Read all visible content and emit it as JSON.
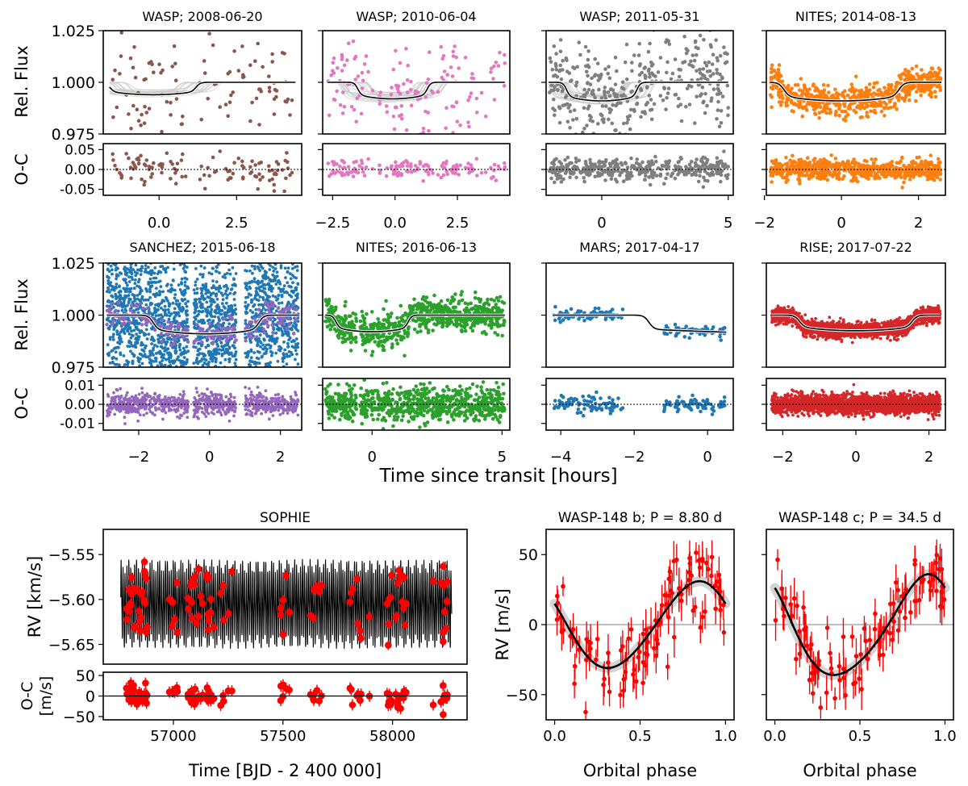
{
  "figure": {
    "transit_xlabel": "Time since transit [hours]",
    "transit_flux_ylabel": "Rel. Flux",
    "transit_oc_ylabel": "O-C"
  },
  "chart_data": [
    {
      "type": "scatter",
      "title": "WASP; 2008-06-20",
      "color": "#8c564b",
      "xlim": [
        -1.8,
        4.6
      ],
      "xticks": [
        0.0,
        2.5
      ],
      "xticklabels": [
        "0.0",
        "2.5"
      ],
      "ylim": [
        0.975,
        1.025
      ],
      "yticklabels": [
        "1.025",
        "1.000",
        "0.975"
      ],
      "oc_ylim": [
        -0.065,
        0.065
      ],
      "oc_yticklabels": [
        "0.05",
        "0.00",
        "-0.05"
      ],
      "npoints": 110,
      "flux_scatter": 0.014,
      "oc_scatter": 0.022,
      "transit": {
        "ingress": -1.6,
        "egress": 1.2,
        "depth": 0.006
      },
      "model_x": [
        -1.6,
        4.4
      ],
      "ghosts": true
    },
    {
      "type": "scatter",
      "title": "WASP; 2010-06-04",
      "color": "#e377c2",
      "xlim": [
        -2.9,
        4.6
      ],
      "xticks": [
        -2.5,
        0.0,
        2.5
      ],
      "xticklabels": [
        "-2.5",
        "0.0",
        "2.5"
      ],
      "ylim": [
        0.975,
        1.025
      ],
      "yticklabels": [],
      "oc_ylim": [
        -0.065,
        0.065
      ],
      "oc_yticklabels": [],
      "npoints": 150,
      "flux_scatter": 0.012,
      "oc_scatter": 0.012,
      "transit": {
        "ingress": -1.5,
        "egress": 1.3,
        "depth": 0.008
      },
      "model_x": [
        -2.7,
        4.4
      ],
      "ghosts": true
    },
    {
      "type": "scatter",
      "title": "WASP; 2011-05-31",
      "color": "#7f7f7f",
      "xlim": [
        -2.2,
        5.2
      ],
      "xticks": [
        0,
        5
      ],
      "xticklabels": [
        "0",
        "5"
      ],
      "ylim": [
        0.975,
        1.025
      ],
      "yticklabels": [],
      "oc_ylim": [
        -0.065,
        0.065
      ],
      "oc_yticklabels": [],
      "npoints": 380,
      "flux_scatter": 0.011,
      "oc_scatter": 0.014,
      "transit": {
        "ingress": -1.4,
        "egress": 1.4,
        "depth": 0.009
      },
      "model_x": [
        -2.1,
        5.0
      ],
      "ghosts": true
    },
    {
      "type": "scatter",
      "title": "NITES; 2014-08-13",
      "color": "#ff7f0e",
      "xlim": [
        -1.95,
        2.7
      ],
      "xticks": [
        -2,
        0,
        2
      ],
      "xticklabels": [
        "-2",
        "0",
        "2"
      ],
      "ylim": [
        0.975,
        1.025
      ],
      "yticklabels": [],
      "oc_ylim": [
        -0.065,
        0.065
      ],
      "oc_yticklabels": [],
      "npoints": 650,
      "flux_scatter": 0.0035,
      "oc_scatter": 0.013,
      "transit": {
        "ingress": -1.5,
        "egress": 1.5,
        "depth": 0.009
      },
      "model_x": [
        -1.85,
        2.6
      ],
      "ghosts": false
    },
    {
      "type": "scatter",
      "title": "SANCHEZ; 2015-06-18",
      "color": "#1f77b4",
      "color2": "#9467bd",
      "xlim": [
        -3.0,
        2.6
      ],
      "xticks": [
        -2,
        0,
        2
      ],
      "xticklabels": [
        "-2",
        "0",
        "2"
      ],
      "ylim": [
        0.975,
        1.025
      ],
      "yticklabels": [
        "1.025",
        "1.000",
        "0.975"
      ],
      "oc_ylim": [
        -0.0135,
        0.0135
      ],
      "oc_yticklabels": [
        "0.01",
        "0.00",
        "-0.01"
      ],
      "npoints": 2600,
      "flux_scatter": 0.02,
      "oc_scatter": 0.003,
      "transit": {
        "ingress": -1.6,
        "egress": 1.4,
        "depth": 0.009
      },
      "model_x": [
        -2.9,
        2.5
      ],
      "gaps": [
        [
          -0.6,
          -0.45
        ],
        [
          0.75,
          1.0
        ]
      ],
      "ghosts": false
    },
    {
      "type": "scatter",
      "title": "NITES; 2016-06-13",
      "color": "#2ca02c",
      "xlim": [
        -1.9,
        5.3
      ],
      "xticks": [
        0,
        5
      ],
      "xticklabels": [
        "0",
        "5"
      ],
      "ylim": [
        0.975,
        1.025
      ],
      "yticklabels": [],
      "oc_ylim": [
        -0.0135,
        0.0135
      ],
      "oc_yticklabels": [],
      "npoints": 800,
      "flux_scatter": 0.004,
      "oc_scatter": 0.0045,
      "transit": {
        "ingress": -1.4,
        "egress": 1.4,
        "depth": 0.008
      },
      "model_x": [
        -1.8,
        5.1
      ],
      "gaps": [
        [
          -0.6,
          -0.45
        ]
      ],
      "ghosts": false
    },
    {
      "type": "scatter",
      "title": "MARS; 2017-04-17",
      "color": "#1f77b4",
      "xlim": [
        -4.4,
        0.7
      ],
      "xticks": [
        -4,
        -2,
        0
      ],
      "xticklabels": [
        "-4",
        "-2",
        "0"
      ],
      "ylim": [
        0.975,
        1.025
      ],
      "yticklabels": [],
      "oc_ylim": [
        -0.0135,
        0.0135
      ],
      "oc_yticklabels": [],
      "npoints": 200,
      "flux_scatter": 0.0013,
      "oc_scatter": 0.002,
      "transit": {
        "ingress": -1.6,
        "egress": 9.0,
        "depth": 0.009
      },
      "model_x": [
        -4.2,
        0.5
      ],
      "gaps": [
        [
          -2.3,
          -1.2
        ]
      ],
      "ghosts": false
    },
    {
      "type": "scatter",
      "title": "RISE; 2017-07-22",
      "color": "#d62728",
      "xlim": [
        -2.45,
        2.45
      ],
      "xticks": [
        -2,
        0,
        2
      ],
      "xticklabels": [
        "-2",
        "0",
        "2"
      ],
      "ylim": [
        0.975,
        1.025
      ],
      "yticklabels": [],
      "oc_ylim": [
        -0.0135,
        0.0135
      ],
      "oc_yticklabels": [],
      "npoints": 2200,
      "flux_scatter": 0.0018,
      "oc_scatter": 0.0025,
      "transit": {
        "ingress": -1.55,
        "egress": 1.55,
        "depth": 0.0075
      },
      "model_x": [
        -2.3,
        2.3
      ],
      "ghosts": false
    },
    {
      "type": "scatter",
      "title": "SOPHIE",
      "xlabel": "Time [BJD - 2 400 000]",
      "ylabel": "RV [km/s]",
      "oc_ylabel": "O-C\n[m/s]",
      "color": "#ff0000",
      "xlim": [
        56680,
        58340
      ],
      "xticks": [
        57000,
        57500,
        58000
      ],
      "xticklabels": [
        "57000",
        "57500",
        "58000"
      ],
      "ylim": [
        -5.672,
        -5.522
      ],
      "yticks": [
        -5.55,
        -5.6,
        -5.65
      ],
      "yticklabels": [
        "-5.55",
        "-5.60",
        "-5.65"
      ],
      "oc_ylim": [
        -58,
        58
      ],
      "oc_yticks": [
        50,
        0,
        -50
      ],
      "oc_yticklabels": [
        "50",
        "0",
        "-50"
      ],
      "npoints": 110,
      "rv_range": [
        -5.655,
        -5.555
      ],
      "model_period_days": 8.8
    },
    {
      "type": "scatter",
      "title": "WASP-148 b; P = 8.80 d",
      "xlabel": "Orbital phase",
      "ylabel": "RV [m/s]",
      "color": "#ff0000",
      "xlim": [
        -0.05,
        1.05
      ],
      "xticks": [
        0.0,
        0.5,
        1.0
      ],
      "xticklabels": [
        "0.0",
        "0.5",
        "1.0"
      ],
      "ylim": [
        -68,
        68
      ],
      "yticks": [
        50,
        0,
        -50
      ],
      "yticklabels": [
        "50",
        "0",
        "-50"
      ],
      "npoints": 110,
      "model": {
        "amplitude": 31,
        "center": 0.0,
        "peak_phase": 0.83,
        "skew": 0.18
      }
    },
    {
      "type": "scatter",
      "title": "WASP-148 c; P = 34.5 d",
      "xlabel": "Orbital phase",
      "ylabel": "",
      "color": "#ff0000",
      "xlim": [
        -0.05,
        1.05
      ],
      "xticks": [
        0.0,
        0.5,
        1.0
      ],
      "xticklabels": [
        "0.0",
        "0.5",
        "1.0"
      ],
      "ylim": [
        -68,
        68
      ],
      "yticks": [
        50,
        0,
        -50
      ],
      "yticklabels": [],
      "npoints": 110,
      "model": {
        "amplitude": 36,
        "center": 0.0,
        "peak_phase": 0.88,
        "skew": 0.35
      }
    }
  ]
}
